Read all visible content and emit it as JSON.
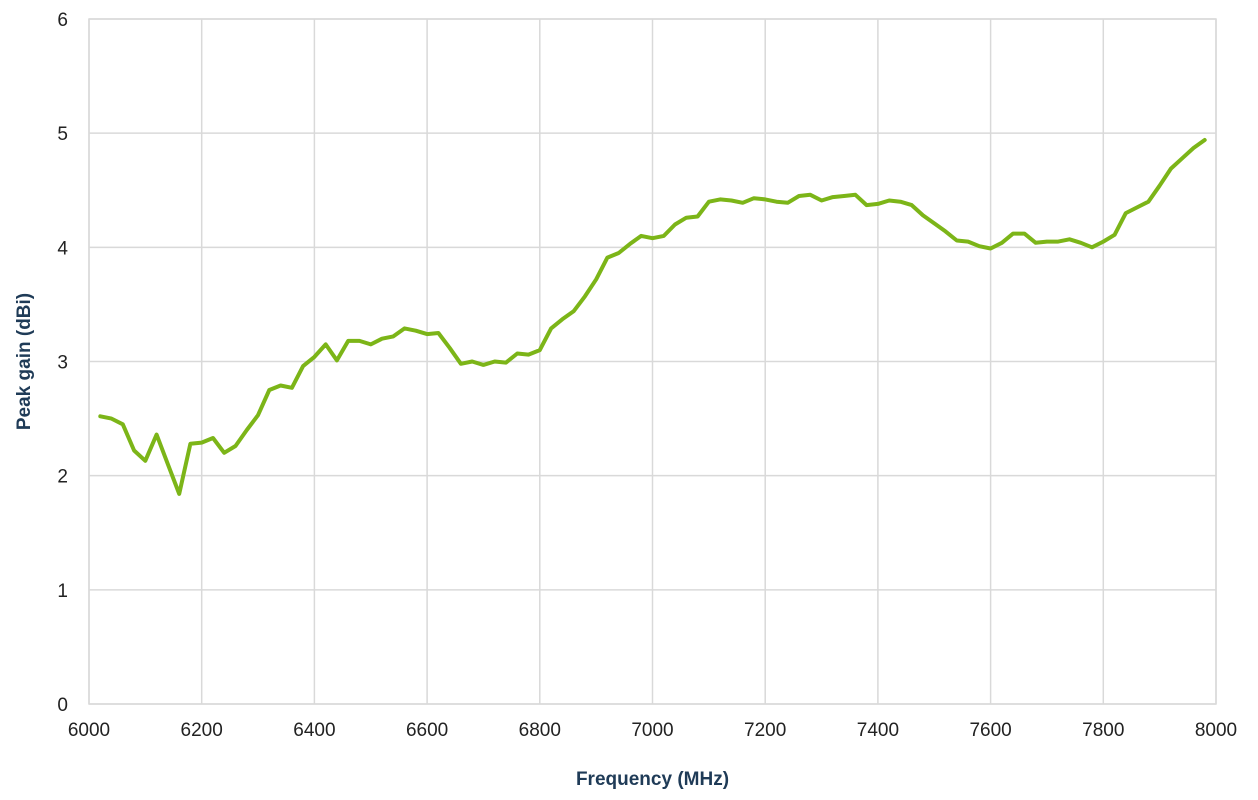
{
  "chart_data": {
    "type": "line",
    "title": "",
    "xlabel": "Frequency (MHz)",
    "ylabel": "Peak gain (dBi)",
    "xlim": [
      6000,
      8000
    ],
    "ylim": [
      0,
      6
    ],
    "xticks": [
      6000,
      6200,
      6400,
      6600,
      6800,
      7000,
      7200,
      7400,
      7600,
      7800,
      8000
    ],
    "yticks": [
      0,
      1,
      2,
      3,
      4,
      5,
      6
    ],
    "grid": true,
    "legend": "none",
    "series": [
      {
        "color": "#7cb518",
        "points": [
          [
            6020,
            2.52
          ],
          [
            6040,
            2.5
          ],
          [
            6060,
            2.45
          ],
          [
            6080,
            2.22
          ],
          [
            6100,
            2.13
          ],
          [
            6120,
            2.36
          ],
          [
            6140,
            2.1
          ],
          [
            6160,
            1.84
          ],
          [
            6180,
            2.28
          ],
          [
            6200,
            2.29
          ],
          [
            6220,
            2.33
          ],
          [
            6240,
            2.2
          ],
          [
            6260,
            2.26
          ],
          [
            6280,
            2.4
          ],
          [
            6300,
            2.53
          ],
          [
            6320,
            2.75
          ],
          [
            6340,
            2.79
          ],
          [
            6360,
            2.77
          ],
          [
            6380,
            2.96
          ],
          [
            6400,
            3.04
          ],
          [
            6420,
            3.15
          ],
          [
            6440,
            3.01
          ],
          [
            6460,
            3.18
          ],
          [
            6480,
            3.18
          ],
          [
            6500,
            3.15
          ],
          [
            6520,
            3.2
          ],
          [
            6540,
            3.22
          ],
          [
            6560,
            3.29
          ],
          [
            6580,
            3.27
          ],
          [
            6600,
            3.24
          ],
          [
            6620,
            3.25
          ],
          [
            6640,
            3.12
          ],
          [
            6660,
            2.98
          ],
          [
            6680,
            3.0
          ],
          [
            6700,
            2.97
          ],
          [
            6720,
            3.0
          ],
          [
            6740,
            2.99
          ],
          [
            6760,
            3.07
          ],
          [
            6780,
            3.06
          ],
          [
            6800,
            3.1
          ],
          [
            6820,
            3.29
          ],
          [
            6840,
            3.37
          ],
          [
            6860,
            3.44
          ],
          [
            6880,
            3.57
          ],
          [
            6900,
            3.72
          ],
          [
            6920,
            3.91
          ],
          [
            6940,
            3.95
          ],
          [
            6960,
            4.03
          ],
          [
            6980,
            4.1
          ],
          [
            7000,
            4.08
          ],
          [
            7020,
            4.1
          ],
          [
            7040,
            4.2
          ],
          [
            7060,
            4.26
          ],
          [
            7080,
            4.27
          ],
          [
            7100,
            4.4
          ],
          [
            7120,
            4.42
          ],
          [
            7140,
            4.41
          ],
          [
            7160,
            4.39
          ],
          [
            7180,
            4.43
          ],
          [
            7200,
            4.42
          ],
          [
            7220,
            4.4
          ],
          [
            7240,
            4.39
          ],
          [
            7260,
            4.45
          ],
          [
            7280,
            4.46
          ],
          [
            7300,
            4.41
          ],
          [
            7320,
            4.44
          ],
          [
            7340,
            4.45
          ],
          [
            7360,
            4.46
          ],
          [
            7380,
            4.37
          ],
          [
            7400,
            4.38
          ],
          [
            7420,
            4.41
          ],
          [
            7440,
            4.4
          ],
          [
            7460,
            4.37
          ],
          [
            7480,
            4.28
          ],
          [
            7500,
            4.21
          ],
          [
            7520,
            4.14
          ],
          [
            7540,
            4.06
          ],
          [
            7560,
            4.05
          ],
          [
            7580,
            4.01
          ],
          [
            7600,
            3.99
          ],
          [
            7620,
            4.04
          ],
          [
            7640,
            4.12
          ],
          [
            7660,
            4.12
          ],
          [
            7680,
            4.04
          ],
          [
            7700,
            4.05
          ],
          [
            7720,
            4.05
          ],
          [
            7740,
            4.07
          ],
          [
            7760,
            4.04
          ],
          [
            7780,
            4.0
          ],
          [
            7800,
            4.05
          ],
          [
            7820,
            4.11
          ],
          [
            7840,
            4.3
          ],
          [
            7860,
            4.35
          ],
          [
            7880,
            4.4
          ],
          [
            7900,
            4.54
          ],
          [
            7920,
            4.69
          ],
          [
            7940,
            4.78
          ],
          [
            7960,
            4.87
          ],
          [
            7980,
            4.94
          ]
        ]
      }
    ]
  }
}
